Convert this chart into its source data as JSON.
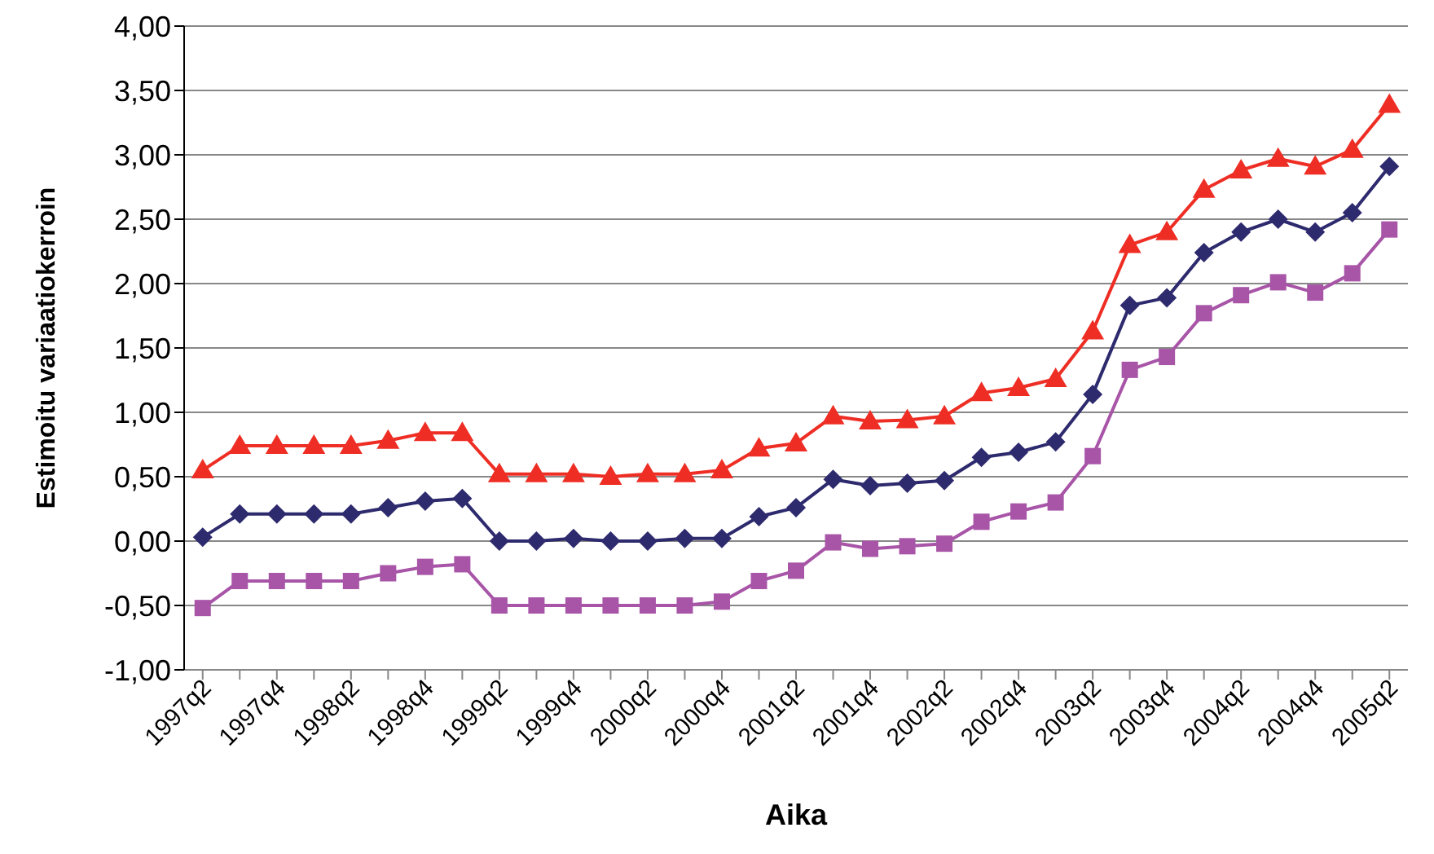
{
  "chart_data": {
    "type": "line",
    "xlabel": "Aika",
    "ylabel": "Estimoitu variaatiokerroin",
    "categories": [
      "1997q2",
      null,
      "1997q4",
      null,
      "1998q2",
      null,
      "1998q4",
      null,
      "1999q2",
      null,
      "1999q4",
      null,
      "2000q2",
      null,
      "2000q4",
      null,
      "2001q2",
      null,
      "2001q4",
      null,
      "2002q2",
      null,
      "2002q4",
      null,
      "2003q2",
      null,
      "2003q4",
      null,
      "2004q2",
      null,
      "2004q4",
      null,
      "2005q2"
    ],
    "series": [
      {
        "color": "#ee2e24",
        "marker": "triangle",
        "values": [
          0.55,
          0.74,
          0.74,
          0.74,
          0.74,
          0.78,
          0.84,
          0.84,
          0.52,
          0.52,
          0.52,
          0.5,
          0.52,
          0.52,
          0.55,
          0.72,
          0.76,
          0.97,
          0.93,
          0.94,
          0.97,
          1.15,
          1.19,
          1.26,
          1.63,
          2.3,
          2.4,
          2.73,
          2.88,
          2.97,
          2.91,
          3.04,
          3.39
        ]
      },
      {
        "color": "#2e2a6e",
        "marker": "diamond",
        "values": [
          0.03,
          0.21,
          0.21,
          0.21,
          0.21,
          0.26,
          0.31,
          0.33,
          0.0,
          0.0,
          0.02,
          0.0,
          0.0,
          0.02,
          0.02,
          0.19,
          0.26,
          0.48,
          0.43,
          0.45,
          0.47,
          0.65,
          0.69,
          0.77,
          1.14,
          1.83,
          1.89,
          2.24,
          2.4,
          2.5,
          2.4,
          2.55,
          2.91
        ]
      },
      {
        "color": "#a855a8",
        "marker": "square",
        "values": [
          -0.52,
          -0.31,
          -0.31,
          -0.31,
          -0.31,
          -0.25,
          -0.2,
          -0.18,
          -0.5,
          -0.5,
          -0.5,
          -0.5,
          -0.5,
          -0.5,
          -0.47,
          -0.31,
          -0.23,
          -0.01,
          -0.06,
          -0.04,
          -0.02,
          0.15,
          0.23,
          0.3,
          0.66,
          1.33,
          1.43,
          1.77,
          1.91,
          2.01,
          1.93,
          2.08,
          2.42
        ]
      }
    ],
    "ylim": [
      -1,
      4
    ],
    "yticks": [
      {
        "value": -1,
        "label": "-1,00"
      },
      {
        "value": -0.5,
        "label": "-0,50"
      },
      {
        "value": 0,
        "label": "0,00"
      },
      {
        "value": 0.5,
        "label": "0,50"
      },
      {
        "value": 1,
        "label": "1,00"
      },
      {
        "value": 1.5,
        "label": "1,50"
      },
      {
        "value": 2,
        "label": "2,00"
      },
      {
        "value": 2.5,
        "label": "2,50"
      },
      {
        "value": 3,
        "label": "3,00"
      },
      {
        "value": 3.5,
        "label": "3,50"
      },
      {
        "value": 4,
        "label": "4,00"
      }
    ],
    "grid": "y",
    "legend": false,
    "line_style": "solid"
  }
}
